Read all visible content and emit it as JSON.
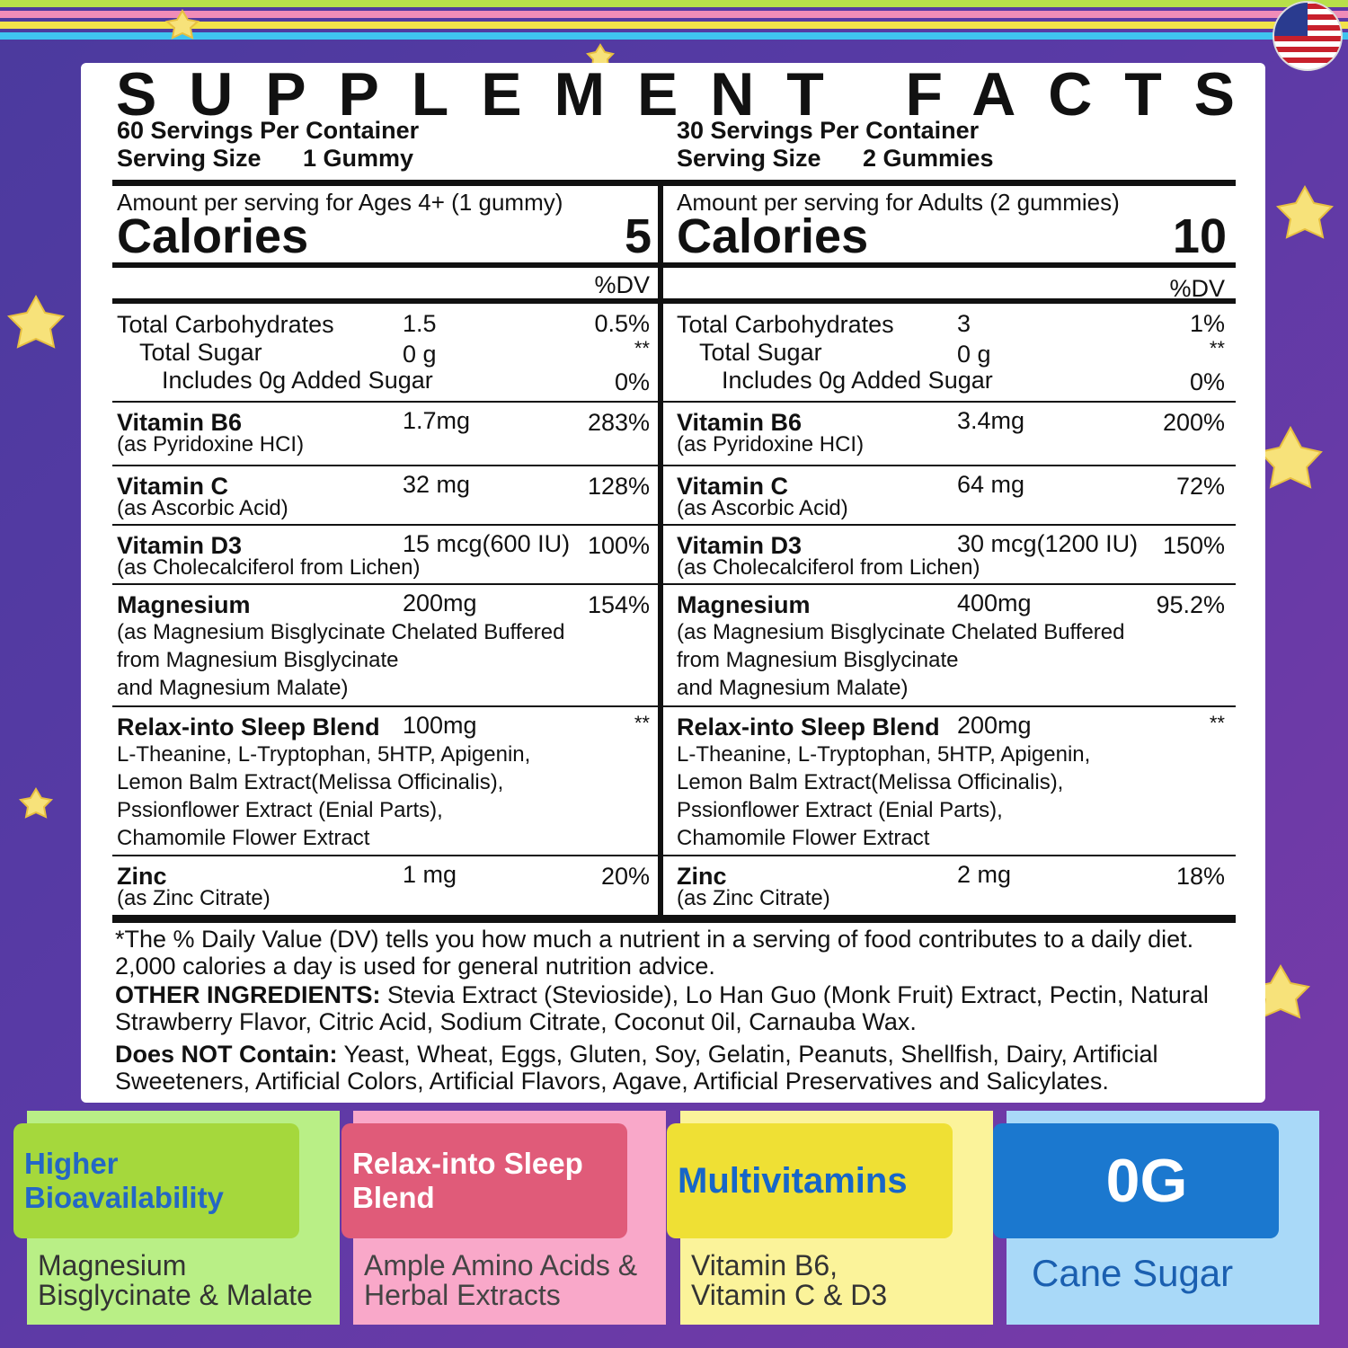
{
  "title": "SUPPLEMENT FACTS",
  "columns": [
    {
      "servings": "60 Servings Per Container",
      "serving_size_label": "Serving Size",
      "serving_size": "1 Gummy",
      "amount_header": "Amount per serving for Ages 4+ (1 gummy)",
      "calories_label": "Calories",
      "calories": "5",
      "dv_header": "%DV",
      "carbohydrates": {
        "name": "Total Carbohydrates",
        "amount": "1.5",
        "dv": "0.5%",
        "sugar": {
          "name": "Total Sugar",
          "amount": "0 g",
          "dv": "**"
        },
        "added_sugar": {
          "name": "Includes 0g Added Sugar",
          "dv": "0%"
        }
      },
      "nutrients": [
        {
          "name": "Vitamin B6",
          "amount": "1.7mg",
          "dv": "283%",
          "note": [
            "(as Pyridoxine HCI)"
          ]
        },
        {
          "name": "Vitamin C",
          "amount": "32 mg",
          "dv": "128%",
          "note": [
            "(as Ascorbic Acid)"
          ]
        },
        {
          "name": "Vitamin D3",
          "amount": "15 mcg(600 IU)",
          "dv": "100%",
          "note": [
            "(as Cholecalciferol from Lichen)"
          ]
        },
        {
          "name": "Magnesium",
          "amount": "200mg",
          "dv": "154%",
          "note": [
            "(as Magnesium Bisglycinate Chelated Buffered",
            "from Magnesium Bisglycinate",
            "and Magnesium Malate)"
          ]
        },
        {
          "name": "Relax-into Sleep Blend",
          "amount": "100mg",
          "dv": "**",
          "note": [
            "L-Theanine, L-Tryptophan, 5HTP, Apigenin,",
            "Lemon Balm Extract(Melissa Officinalis),",
            "Pssionflower Extract (Enial Parts),",
            "Chamomile Flower Extract"
          ]
        },
        {
          "name": "Zinc",
          "amount": "1 mg",
          "dv": "20%",
          "note": [
            "(as Zinc Citrate)"
          ]
        }
      ]
    },
    {
      "servings": "30 Servings Per Container",
      "serving_size_label": "Serving Size",
      "serving_size": "2 Gummies",
      "amount_header": "Amount per serving for Adults (2 gummies)",
      "calories_label": "Calories",
      "calories": "10",
      "dv_header": "%DV",
      "carbohydrates": {
        "name": "Total Carbohydrates",
        "amount": "3",
        "dv": "1%",
        "sugar": {
          "name": "Total Sugar",
          "amount": "0 g",
          "dv": "**"
        },
        "added_sugar": {
          "name": "Includes 0g Added Sugar",
          "dv": "0%"
        }
      },
      "nutrients": [
        {
          "name": "Vitamin B6",
          "amount": "3.4mg",
          "dv": "200%",
          "note": [
            "(as Pyridoxine HCI)"
          ]
        },
        {
          "name": "Vitamin C",
          "amount": "64 mg",
          "dv": "72%",
          "note": [
            "(as Ascorbic Acid)"
          ]
        },
        {
          "name": "Vitamin D3",
          "amount": "30 mcg(1200 IU)",
          "dv": "150%",
          "note": [
            "(as Cholecalciferol from Lichen)"
          ]
        },
        {
          "name": "Magnesium",
          "amount": "400mg",
          "dv": "95.2%",
          "note": [
            "(as Magnesium Bisglycinate Chelated Buffered",
            "from Magnesium Bisglycinate",
            "and Magnesium Malate)"
          ]
        },
        {
          "name": "Relax-into Sleep Blend",
          "amount": "200mg",
          "dv": "**",
          "note": [
            "L-Theanine, L-Tryptophan, 5HTP, Apigenin,",
            "Lemon Balm Extract(Melissa Officinalis),",
            "Pssionflower Extract (Enial Parts),",
            "Chamomile Flower Extract"
          ]
        },
        {
          "name": "Zinc",
          "amount": "2 mg",
          "dv": "18%",
          "note": [
            "(as Zinc Citrate)"
          ]
        }
      ]
    }
  ],
  "footnote": "*The % Daily Value (DV) tells you how much a nutrient in a serving of food contributes to a daily diet. 2,000 calories a day is used for general nutrition advice.",
  "other_ingredients_label": "OTHER INGREDIENTS:",
  "other_ingredients": "Stevia Extract (Stevioside), Lo Han Guo (Monk Fruit) Extract, Pectin, Natural Strawberry Flavor, Citric Acid, Sodium Citrate, Coconut 0il, Carnauba Wax.",
  "does_not_contain_label": "Does NOT Contain:",
  "does_not_contain": "Yeast, Wheat, Eggs, Gluten, Soy, Gelatin, Peanuts, Shellfish, Dairy, Artificial Sweeteners, Artificial Colors, Artificial  Flavors, Agave, Artificial Preservatives and Salicylates.",
  "badges": [
    {
      "title": "Higher Bioavailability",
      "subtitle": "Magnesium Bisglycinate & Malate"
    },
    {
      "title": "Relax-into Sleep Blend",
      "subtitle": "Ample Amino Acids & Herbal Extracts"
    },
    {
      "title": "Multivitamins",
      "subtitle": "Vitamin B6, Vitamin C & D3"
    },
    {
      "title": "0G",
      "subtitle": "Cane Sugar"
    }
  ]
}
